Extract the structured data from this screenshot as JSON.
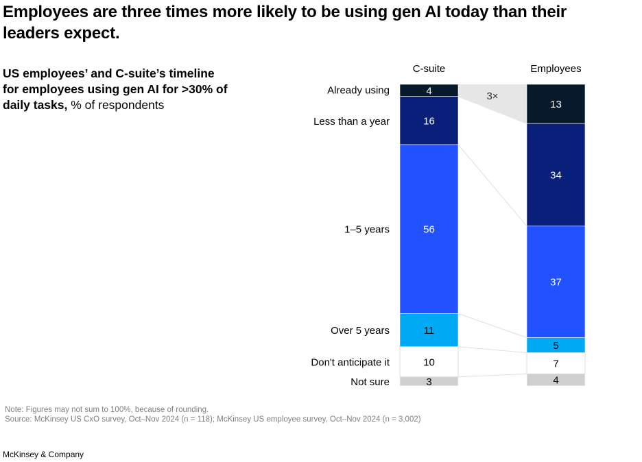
{
  "title": "Employees are three times more likely to be using gen AI today than their leaders expect.",
  "subtitle_bold": "US employees’ and C-suite’s timeline for employees using gen AI for >30% of daily tasks,",
  "subtitle_regular": " % of respondents",
  "note": "Note: Figures may not sum to 100%, because of rounding.",
  "source": "Source: McKinsey US CxO survey, Oct–Nov 2024 (n = 118); McKinsey US employee survey, Oct–Nov 2024 (n = 3,002)",
  "brand": "McKinsey & Company",
  "chart_data": {
    "type": "bar",
    "stacked": true,
    "orientation": "vertical",
    "categories": [
      "Already using",
      "Less than a year",
      "1–5 years",
      "Over 5 years",
      "Don't anticipate it",
      "Not sure"
    ],
    "series": [
      {
        "name": "C-suite",
        "values": [
          4,
          16,
          56,
          11,
          10,
          3
        ]
      },
      {
        "name": "Employees",
        "values": [
          13,
          34,
          37,
          5,
          7,
          4
        ]
      }
    ],
    "colors": [
      "#061a2c",
      "#0a1f7a",
      "#2251ff",
      "#00a9f4",
      "#ffffff",
      "#d0d0d0"
    ],
    "label_colors": [
      "#ffffff",
      "#ffffff",
      "#ffffff",
      "#000000",
      "#000000",
      "#000000"
    ],
    "annotation": "3×",
    "annotation_fill": "#e6e6e6",
    "ylim": [
      0,
      100
    ]
  }
}
